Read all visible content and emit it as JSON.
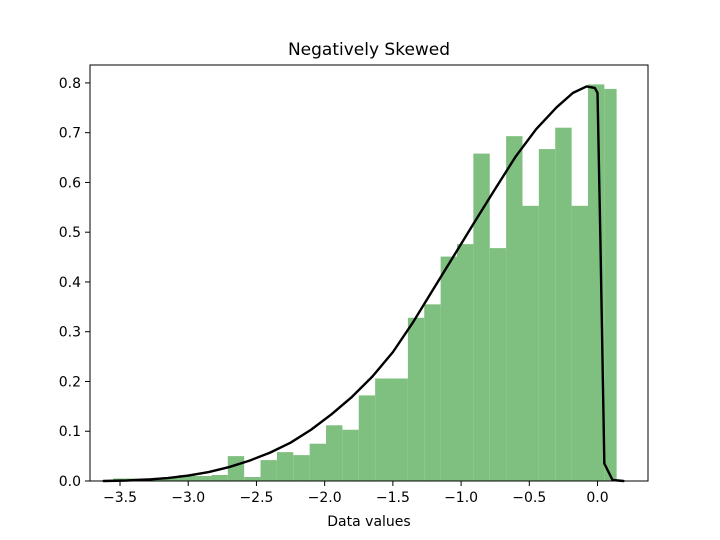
{
  "chart_data": {
    "type": "bar",
    "title": "Negatively Skewed",
    "xlabel": "Data values",
    "ylabel": "",
    "xlim": [
      -3.72,
      0.37
    ],
    "ylim": [
      0,
      0.836
    ],
    "x_ticks": [
      -3.5,
      -3.0,
      -2.5,
      -2.0,
      -1.5,
      -1.0,
      -0.5,
      0.0
    ],
    "x_tick_labels": [
      "−3.5",
      "−3.0",
      "−2.5",
      "−2.0",
      "−1.5",
      "−1.0",
      "−0.5",
      "0.0"
    ],
    "y_ticks": [
      0.0,
      0.1,
      0.2,
      0.3,
      0.4,
      0.5,
      0.6,
      0.7,
      0.8
    ],
    "y_tick_labels": [
      "0.0",
      "0.1",
      "0.2",
      "0.3",
      "0.4",
      "0.5",
      "0.6",
      "0.7",
      "0.8"
    ],
    "grid": false,
    "histogram": {
      "color": "#7fbf7f",
      "bins": [
        {
          "x0": -3.55,
          "x1": -3.43,
          "value": 0.005
        },
        {
          "x0": -3.43,
          "x1": -3.31,
          "value": 0.005
        },
        {
          "x0": -3.31,
          "x1": -3.19,
          "value": 0.005
        },
        {
          "x0": -3.19,
          "x1": -3.07,
          "value": 0.008
        },
        {
          "x0": -3.07,
          "x1": -2.95,
          "value": 0.012
        },
        {
          "x0": -2.95,
          "x1": -2.83,
          "value": 0.01
        },
        {
          "x0": -2.83,
          "x1": -2.71,
          "value": 0.012
        },
        {
          "x0": -2.71,
          "x1": -2.59,
          "value": 0.05
        },
        {
          "x0": -2.59,
          "x1": -2.47,
          "value": 0.008
        },
        {
          "x0": -2.47,
          "x1": -2.35,
          "value": 0.042
        },
        {
          "x0": -2.35,
          "x1": -2.23,
          "value": 0.058
        },
        {
          "x0": -2.23,
          "x1": -2.11,
          "value": 0.052
        },
        {
          "x0": -2.11,
          "x1": -1.99,
          "value": 0.075
        },
        {
          "x0": -1.99,
          "x1": -1.87,
          "value": 0.112
        },
        {
          "x0": -1.87,
          "x1": -1.75,
          "value": 0.103
        },
        {
          "x0": -1.75,
          "x1": -1.63,
          "value": 0.172
        },
        {
          "x0": -1.63,
          "x1": -1.51,
          "value": 0.206
        },
        {
          "x0": -1.51,
          "x1": -1.39,
          "value": 0.206
        },
        {
          "x0": -1.39,
          "x1": -1.27,
          "value": 0.328
        },
        {
          "x0": -1.27,
          "x1": -1.15,
          "value": 0.355
        },
        {
          "x0": -1.15,
          "x1": -1.03,
          "value": 0.451
        },
        {
          "x0": -1.03,
          "x1": -0.91,
          "value": 0.476
        },
        {
          "x0": -0.91,
          "x1": -0.79,
          "value": 0.658
        },
        {
          "x0": -0.79,
          "x1": -0.67,
          "value": 0.468
        },
        {
          "x0": -0.67,
          "x1": -0.55,
          "value": 0.693
        },
        {
          "x0": -0.55,
          "x1": -0.43,
          "value": 0.553
        },
        {
          "x0": -0.43,
          "x1": -0.31,
          "value": 0.667
        },
        {
          "x0": -0.31,
          "x1": -0.19,
          "value": 0.71
        },
        {
          "x0": -0.19,
          "x1": -0.07,
          "value": 0.553
        },
        {
          "x0": -0.07,
          "x1": 0.05,
          "value": 0.797
        },
        {
          "x0": 0.05,
          "x1": 0.14,
          "value": 0.788
        }
      ]
    },
    "pdf_curve": {
      "color": "#000000",
      "x": [
        -3.62,
        -3.45,
        -3.3,
        -3.15,
        -3.0,
        -2.85,
        -2.7,
        -2.55,
        -2.4,
        -2.25,
        -2.1,
        -1.95,
        -1.8,
        -1.65,
        -1.5,
        -1.35,
        -1.2,
        -1.05,
        -0.9,
        -0.75,
        -0.6,
        -0.45,
        -0.3,
        -0.18,
        -0.08,
        -0.02,
        0.0,
        0.02,
        0.05,
        0.11,
        0.19
      ],
      "y": [
        0.0,
        0.001,
        0.003,
        0.006,
        0.011,
        0.018,
        0.028,
        0.041,
        0.057,
        0.077,
        0.103,
        0.134,
        0.169,
        0.21,
        0.259,
        0.32,
        0.387,
        0.454,
        0.521,
        0.587,
        0.652,
        0.707,
        0.751,
        0.78,
        0.793,
        0.79,
        0.78,
        0.5,
        0.035,
        0.002,
        0.0
      ]
    }
  }
}
